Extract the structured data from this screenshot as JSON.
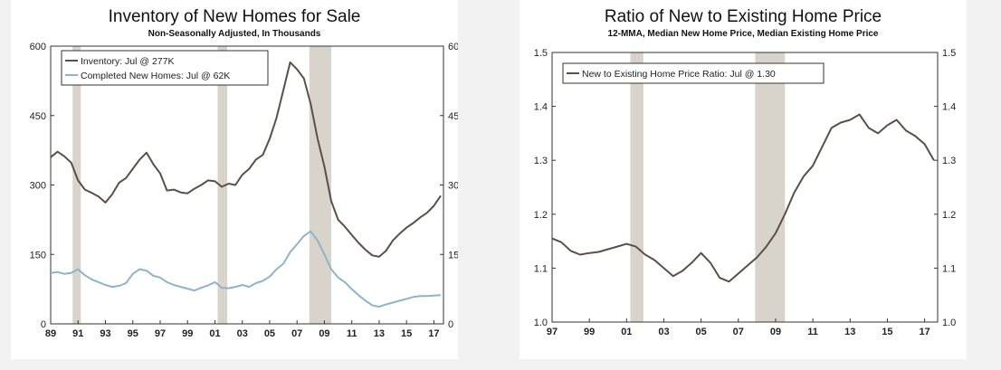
{
  "chart_data": [
    {
      "type": "line",
      "title": "Inventory of New Homes for Sale",
      "subtitle": "Non-Seasonally Adjusted, In Thousands",
      "x_ticks": [
        "89",
        "91",
        "93",
        "95",
        "97",
        "99",
        "01",
        "03",
        "05",
        "07",
        "09",
        "11",
        "13",
        "15",
        "17"
      ],
      "xlim": [
        1989,
        2017.7
      ],
      "ylim": [
        0,
        600
      ],
      "y_ticks": [
        "0",
        "150",
        "300",
        "450",
        "600"
      ],
      "legend_position": "top-left",
      "recessions": [
        [
          1990.6,
          1991.2
        ],
        [
          2001.2,
          2001.9
        ],
        [
          2007.9,
          2009.5
        ]
      ],
      "colors": {
        "inventory": "#5b4f47",
        "completed": "#8fb3c9",
        "recession": "#d9d4cb"
      },
      "series": [
        {
          "name": "Inventory: Jul @ 277K",
          "key": "inventory",
          "x": [
            1989.0,
            1989.5,
            1990.0,
            1990.5,
            1991.0,
            1991.5,
            1992.0,
            1992.5,
            1993.0,
            1993.5,
            1994.0,
            1994.5,
            1995.0,
            1995.5,
            1996.0,
            1996.5,
            1997.0,
            1997.5,
            1998.0,
            1998.5,
            1999.0,
            1999.5,
            2000.0,
            2000.5,
            2001.0,
            2001.5,
            2002.0,
            2002.5,
            2003.0,
            2003.5,
            2004.0,
            2004.5,
            2005.0,
            2005.5,
            2006.0,
            2006.5,
            2007.0,
            2007.5,
            2008.0,
            2008.5,
            2009.0,
            2009.5,
            2010.0,
            2010.5,
            2011.0,
            2011.5,
            2012.0,
            2012.5,
            2013.0,
            2013.5,
            2014.0,
            2014.5,
            2015.0,
            2015.5,
            2016.0,
            2016.5,
            2017.0,
            2017.5
          ],
          "y": [
            360,
            372,
            362,
            348,
            310,
            290,
            283,
            275,
            262,
            280,
            305,
            315,
            335,
            355,
            370,
            345,
            325,
            288,
            290,
            284,
            282,
            292,
            300,
            310,
            308,
            296,
            303,
            300,
            322,
            335,
            355,
            365,
            400,
            445,
            505,
            565,
            550,
            530,
            475,
            400,
            340,
            265,
            225,
            210,
            192,
            175,
            160,
            148,
            145,
            158,
            180,
            195,
            208,
            218,
            230,
            240,
            255,
            277
          ]
        },
        {
          "name": "Completed New Homes: Jul @ 62K",
          "key": "completed",
          "x": [
            1989.0,
            1989.5,
            1990.0,
            1990.5,
            1991.0,
            1991.5,
            1992.0,
            1992.5,
            1993.0,
            1993.5,
            1994.0,
            1994.5,
            1995.0,
            1995.5,
            1996.0,
            1996.5,
            1997.0,
            1997.5,
            1998.0,
            1998.5,
            1999.0,
            1999.5,
            2000.0,
            2000.5,
            2001.0,
            2001.5,
            2002.0,
            2002.5,
            2003.0,
            2003.5,
            2004.0,
            2004.5,
            2005.0,
            2005.5,
            2006.0,
            2006.5,
            2007.0,
            2007.5,
            2008.0,
            2008.5,
            2009.0,
            2009.5,
            2010.0,
            2010.5,
            2011.0,
            2011.5,
            2012.0,
            2012.5,
            2013.0,
            2013.5,
            2014.0,
            2014.5,
            2015.0,
            2015.5,
            2016.0,
            2016.5,
            2017.0,
            2017.5
          ],
          "y": [
            110,
            112,
            108,
            110,
            118,
            105,
            96,
            90,
            84,
            80,
            82,
            88,
            108,
            118,
            115,
            104,
            100,
            90,
            84,
            80,
            76,
            72,
            78,
            83,
            90,
            78,
            77,
            80,
            84,
            80,
            88,
            93,
            102,
            118,
            130,
            155,
            172,
            190,
            200,
            180,
            150,
            118,
            100,
            90,
            75,
            62,
            50,
            40,
            37,
            42,
            46,
            50,
            54,
            58,
            60,
            60,
            61,
            62
          ]
        }
      ]
    },
    {
      "type": "line",
      "title": "Ratio of New to Existing Home Price",
      "subtitle": "12-MMA, Median New Home Price, Median Existing Home Price",
      "x_ticks": [
        "97",
        "99",
        "01",
        "03",
        "05",
        "07",
        "09",
        "11",
        "13",
        "15",
        "17"
      ],
      "xlim": [
        1997,
        2017.7
      ],
      "ylim": [
        1.0,
        1.5
      ],
      "y_ticks": [
        "1.0",
        "1.1",
        "1.2",
        "1.3",
        "1.4",
        "1.5"
      ],
      "legend_position": "top-left",
      "recessions": [
        [
          2001.2,
          2001.9
        ],
        [
          2007.9,
          2009.5
        ]
      ],
      "colors": {
        "ratio": "#5b4f47",
        "recession": "#d9d4cb"
      },
      "series": [
        {
          "name": "New to Existing Home Price Ratio: Jul @ 1.30",
          "key": "ratio",
          "x": [
            1997.0,
            1997.5,
            1998.0,
            1998.5,
            1999.0,
            1999.5,
            2000.0,
            2000.5,
            2001.0,
            2001.5,
            2002.0,
            2002.5,
            2003.0,
            2003.5,
            2004.0,
            2004.5,
            2005.0,
            2005.5,
            2006.0,
            2006.5,
            2007.0,
            2007.5,
            2008.0,
            2008.5,
            2009.0,
            2009.5,
            2010.0,
            2010.5,
            2011.0,
            2011.5,
            2012.0,
            2012.5,
            2013.0,
            2013.5,
            2014.0,
            2014.5,
            2015.0,
            2015.5,
            2016.0,
            2016.5,
            2017.0,
            2017.5
          ],
          "y": [
            1.155,
            1.148,
            1.132,
            1.125,
            1.128,
            1.13,
            1.135,
            1.14,
            1.145,
            1.14,
            1.125,
            1.115,
            1.1,
            1.085,
            1.095,
            1.11,
            1.128,
            1.11,
            1.082,
            1.075,
            1.09,
            1.105,
            1.12,
            1.14,
            1.165,
            1.2,
            1.24,
            1.27,
            1.29,
            1.325,
            1.36,
            1.37,
            1.375,
            1.385,
            1.36,
            1.35,
            1.365,
            1.375,
            1.355,
            1.345,
            1.33,
            1.3
          ]
        }
      ]
    }
  ]
}
